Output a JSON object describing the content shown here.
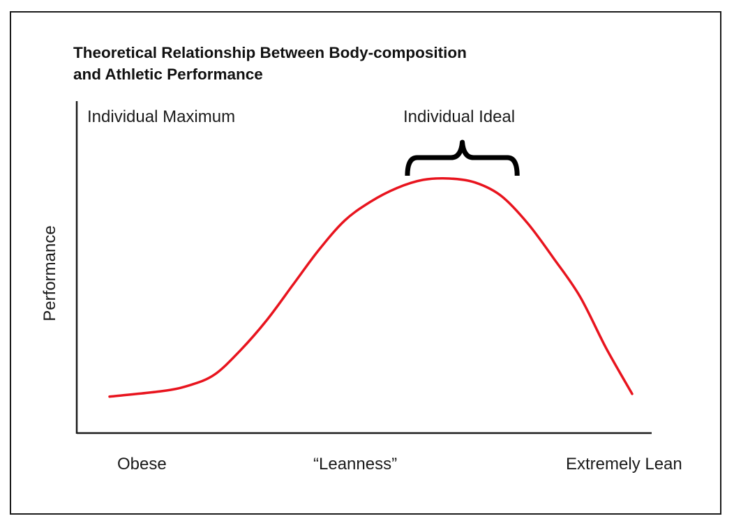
{
  "chart_data": {
    "type": "line",
    "title": "Theoretical Relationship Between Body-composition and Athletic Performance",
    "title_lines": [
      "Theoretical Relationship Between Body-composition",
      "and Athletic Performance"
    ],
    "ylabel": "Performance",
    "x_labels": {
      "left": "Obese",
      "center": "“Leanness”",
      "right": "Extremely Lean"
    },
    "annotations": {
      "max": "Individual Maximum",
      "ideal": "Individual Ideal"
    },
    "ideal_range": [
      57,
      78
    ],
    "xlim": [
      0,
      100
    ],
    "ylim": [
      0,
      100
    ],
    "grid": false,
    "series": [
      {
        "color": "#e8141e",
        "x": [
          0,
          10,
          15,
          20,
          25,
          30,
          35,
          40,
          45,
          50,
          55,
          60,
          65,
          70,
          75,
          80,
          85,
          90,
          95,
          100
        ],
        "y": [
          6,
          8,
          10,
          14,
          23,
          34,
          47,
          60,
          71,
          78,
          83,
          86,
          86.5,
          85,
          80,
          70,
          57,
          43,
          24,
          7
        ]
      }
    ]
  }
}
